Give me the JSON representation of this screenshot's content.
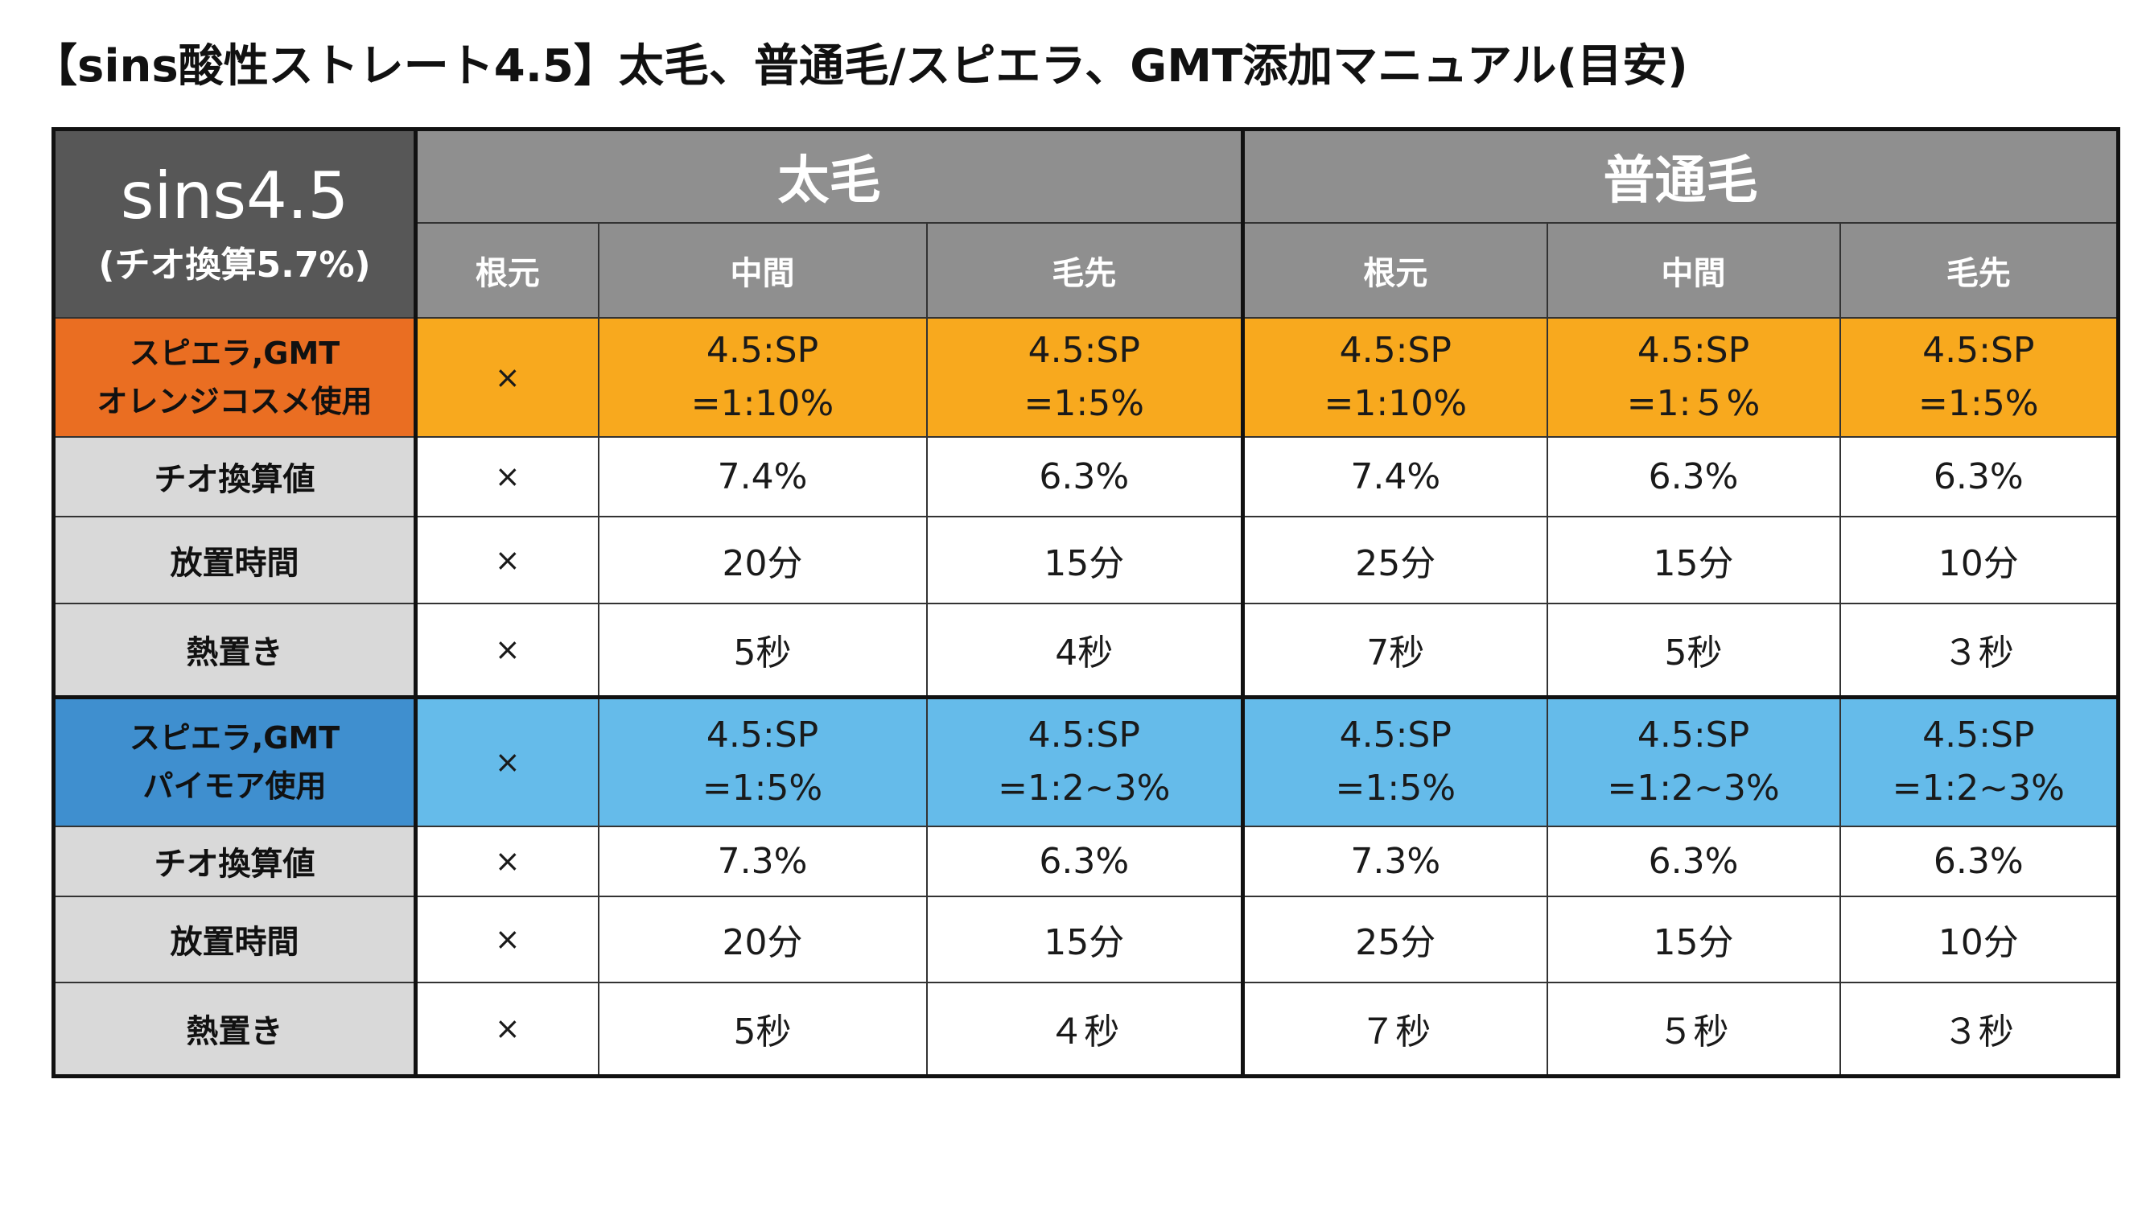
{
  "page": {
    "title": "【sins酸性ストレート4.5】太毛、普通毛/スピエラ、GMT添加マニュアル(目安)"
  },
  "table": {
    "corner": {
      "main": "sins4.5",
      "sub": "(チオ換算5.7%)"
    },
    "groups": [
      "太毛",
      "普通毛"
    ],
    "sub_headers": [
      "根元",
      "中間",
      "毛先",
      "根元",
      "中間",
      "毛先"
    ],
    "sections": [
      {
        "label_lines": [
          "スピエラ,GMT",
          "オレンジコスメ使用"
        ],
        "color": "#f8a91e",
        "label_color": "#ea6e22",
        "ratio": [
          [
            "×"
          ],
          [
            "4.5:SP",
            "=1:10%"
          ],
          [
            "4.5:SP",
            "=1:5%"
          ],
          [
            "4.5:SP",
            "=1:10%"
          ],
          [
            "4.5:SP",
            "=1:５%"
          ],
          [
            "4.5:SP",
            "=1:5%"
          ]
        ],
        "rows": [
          {
            "label": "チオ換算値",
            "values": [
              "×",
              "7.4%",
              "6.3%",
              "7.4%",
              "6.3%",
              "6.3%"
            ]
          },
          {
            "label": "放置時間",
            "values": [
              "×",
              "20分",
              "15分",
              "25分",
              "15分",
              "10分"
            ]
          },
          {
            "label": "熱置き",
            "values": [
              "×",
              "5秒",
              "4秒",
              "7秒",
              "5秒",
              "３秒"
            ]
          }
        ]
      },
      {
        "label_lines": [
          "スピエラ,GMT",
          "パイモア使用"
        ],
        "color": "#65bbea",
        "label_color": "#3f8fcf",
        "ratio": [
          [
            "×"
          ],
          [
            "4.5:SP",
            "=1:5%"
          ],
          [
            "4.5:SP",
            "=1:2~3%"
          ],
          [
            "4.5:SP",
            "=1:5%"
          ],
          [
            "4.5:SP",
            "=1:2~3%"
          ],
          [
            "4.5:SP",
            "=1:2~3%"
          ]
        ],
        "rows": [
          {
            "label": "チオ換算値",
            "values": [
              "×",
              "7.3%",
              "6.3%",
              "7.3%",
              "6.3%",
              "6.3%"
            ]
          },
          {
            "label": "放置時間",
            "values": [
              "×",
              "20分",
              "15分",
              "25分",
              "15分",
              "10分"
            ]
          },
          {
            "label": "熱置き",
            "values": [
              "×",
              "5秒",
              "４秒",
              "７秒",
              "５秒",
              "３秒"
            ]
          }
        ]
      }
    ]
  }
}
